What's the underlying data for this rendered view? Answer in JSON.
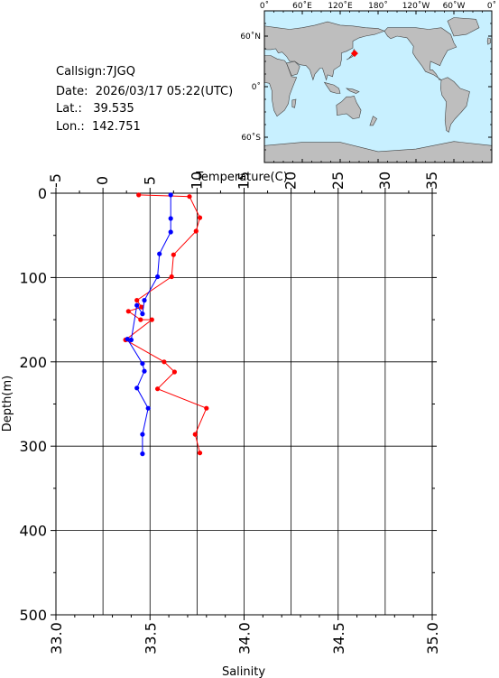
{
  "station": {
    "callsign_label": "Callsign:",
    "callsign": "7JGQ",
    "date_label": "Date:",
    "date": "2026/03/17 05:22(UTC)",
    "lat_label": "Lat.:",
    "lat": "39.535",
    "lon_label": "Lon.:",
    "lon": "142.751"
  },
  "map": {
    "lon_ticks": [
      "0˚",
      "60˚E",
      "120˚E",
      "180˚",
      "120˚W",
      "60˚W",
      "0˚"
    ],
    "lat_ticks": [
      "60˚N",
      "0˚",
      "60˚S"
    ],
    "ocean_color": "#c8f0ff",
    "land_color": "#bebebe",
    "marker_color": "#ff0000"
  },
  "chart_data": {
    "type": "line",
    "ylabel": "Depth(m)",
    "y_ticks": [
      "0",
      "100",
      "200",
      "300",
      "400",
      "500"
    ],
    "ylim": [
      0,
      500
    ],
    "y_inverted": true,
    "top_axis": {
      "label": "Temperature(C)",
      "ticks": [
        "-5",
        "0",
        "5",
        "10",
        "15",
        "20",
        "25",
        "30",
        "35"
      ],
      "range": [
        -5,
        35
      ]
    },
    "bottom_axis": {
      "label": "Salinity",
      "ticks": [
        "33.0",
        "33.5",
        "34.0",
        "34.5",
        "35.0"
      ],
      "range": [
        33.0,
        35.0
      ]
    },
    "grid": true,
    "series": [
      {
        "axis": "temperature",
        "color": "#ff0000",
        "points": [
          [
            3.8,
            2
          ],
          [
            9.2,
            4
          ],
          [
            10.3,
            29
          ],
          [
            9.9,
            45
          ],
          [
            7.5,
            73
          ],
          [
            7.3,
            99
          ],
          [
            3.6,
            127
          ],
          [
            4.1,
            135
          ],
          [
            2.7,
            140
          ],
          [
            4.0,
            150
          ],
          [
            5.2,
            150
          ],
          [
            2.4,
            174
          ],
          [
            6.5,
            200
          ],
          [
            7.6,
            212
          ],
          [
            5.8,
            232
          ],
          [
            11.0,
            255
          ],
          [
            9.8,
            286
          ],
          [
            10.3,
            308
          ]
        ]
      },
      {
        "axis": "salinity",
        "color": "#0000ff",
        "points": [
          [
            33.61,
            2
          ],
          [
            33.61,
            30
          ],
          [
            33.61,
            46
          ],
          [
            33.55,
            72
          ],
          [
            33.54,
            99
          ],
          [
            33.47,
            127
          ],
          [
            33.46,
            143
          ],
          [
            33.43,
            133
          ],
          [
            33.4,
            174
          ],
          [
            33.38,
            173
          ],
          [
            33.46,
            202
          ],
          [
            33.47,
            211
          ],
          [
            33.43,
            231
          ],
          [
            33.49,
            255
          ],
          [
            33.46,
            286
          ],
          [
            33.46,
            309
          ]
        ]
      }
    ]
  }
}
